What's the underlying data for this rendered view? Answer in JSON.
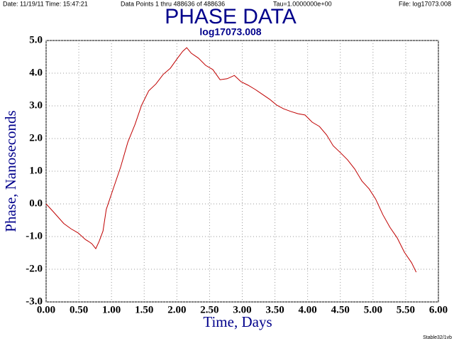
{
  "chart_data": {
    "type": "line",
    "title": "PHASE DATA",
    "subtitle": "log17073.008",
    "annotations": [
      "Date: 11/19/11  Time: 15:47:21",
      "Data Points 1 thru 488636 of 488636",
      "Tau=1.0000000e+00",
      "File: log17073.008",
      "Stable32/1vb"
    ],
    "x_label": "Time,  Days",
    "y_label": "Phase,  Nanoseconds",
    "x": [
      0,
      0.11,
      0.27,
      0.38,
      0.49,
      0.6,
      0.65,
      0.7,
      0.76,
      0.81,
      0.87,
      0.92,
      1.03,
      1.14,
      1.25,
      1.36,
      1.46,
      1.57,
      1.68,
      1.79,
      1.9,
      2.01,
      2.09,
      2.15,
      2.22,
      2.33,
      2.44,
      2.55,
      2.66,
      2.77,
      2.88,
      2.98,
      3.09,
      3.2,
      3.31,
      3.42,
      3.53,
      3.63,
      3.74,
      3.85,
      3.96,
      4.07,
      4.18,
      4.29,
      4.39,
      4.5,
      4.61,
      4.72,
      4.83,
      4.94,
      5.04,
      5.15,
      5.26,
      5.37,
      5.48,
      5.59,
      5.66
    ],
    "values": [
      0,
      -0.24,
      -0.6,
      -0.76,
      -0.89,
      -1.09,
      -1.15,
      -1.22,
      -1.37,
      -1.15,
      -0.83,
      -0.17,
      0.48,
      1.13,
      1.89,
      2.43,
      3.02,
      3.46,
      3.67,
      3.96,
      4.15,
      4.46,
      4.67,
      4.78,
      4.61,
      4.46,
      4.24,
      4.11,
      3.8,
      3.83,
      3.93,
      3.74,
      3.63,
      3.5,
      3.35,
      3.2,
      3.02,
      2.91,
      2.83,
      2.76,
      2.72,
      2.5,
      2.37,
      2.11,
      1.78,
      1.57,
      1.35,
      1.07,
      0.7,
      0.46,
      0.15,
      -0.33,
      -0.72,
      -1.04,
      -1.48,
      -1.8,
      -2.09
    ],
    "color": "#c00000",
    "xlim": [
      0,
      6
    ],
    "ylim": [
      -3,
      5
    ],
    "xticks": [
      {
        "value": 0,
        "label": "0.00"
      },
      {
        "value": 0.5,
        "label": "0.50"
      },
      {
        "value": 1,
        "label": "1.00"
      },
      {
        "value": 1.5,
        "label": "1.50"
      },
      {
        "value": 2,
        "label": "2.00"
      },
      {
        "value": 2.5,
        "label": "2.50"
      },
      {
        "value": 3,
        "label": "3.00"
      },
      {
        "value": 3.5,
        "label": "3.50"
      },
      {
        "value": 4,
        "label": "4.00"
      },
      {
        "value": 4.5,
        "label": "4.50"
      },
      {
        "value": 5,
        "label": "5.00"
      },
      {
        "value": 5.5,
        "label": "5.50"
      },
      {
        "value": 6,
        "label": "6.00"
      }
    ],
    "yticks": [
      {
        "value": 5,
        "label": "5.0"
      },
      {
        "value": 4,
        "label": "4.0"
      },
      {
        "value": 3,
        "label": "3.0"
      },
      {
        "value": 2,
        "label": "2.0"
      },
      {
        "value": 1,
        "label": "1.0"
      },
      {
        "value": 0,
        "label": "0.0"
      },
      {
        "value": -1,
        "label": "-1.0"
      },
      {
        "value": -2,
        "label": "-2.0"
      },
      {
        "value": -3,
        "label": "-3.0"
      }
    ],
    "grid": true
  }
}
